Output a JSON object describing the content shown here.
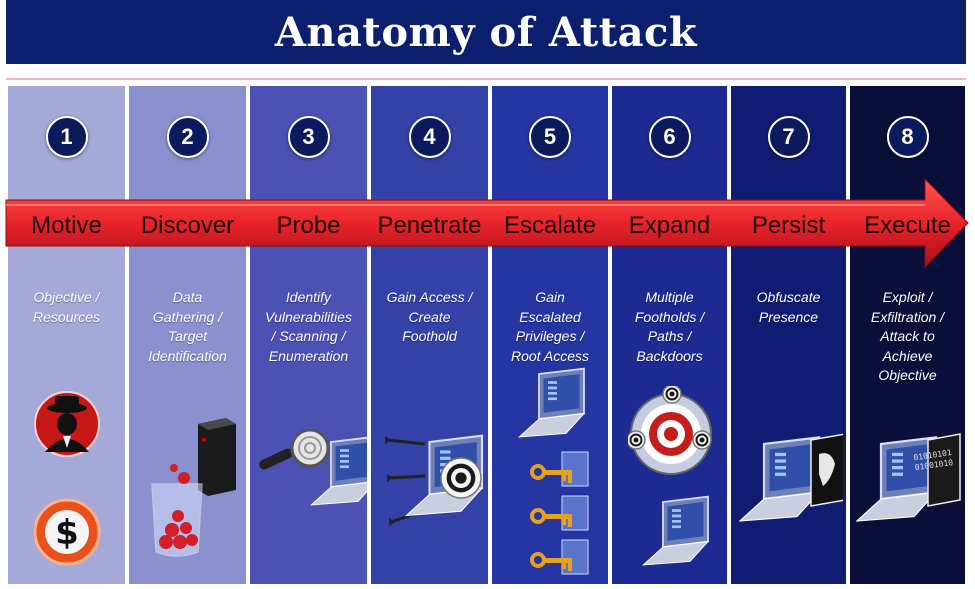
{
  "title": "Anatomy of Attack",
  "stages": [
    {
      "number": "1",
      "label": "Motive",
      "description": "Objective  /\nResources",
      "icons": [
        "spy-icon",
        "dollar-icon"
      ],
      "color": "#a5a9d8"
    },
    {
      "number": "2",
      "label": "Discover",
      "description": "Data\nGathering /\nTarget\nIdentification",
      "icons": [
        "server-icon",
        "data-beaker-icon"
      ],
      "color": "#8b90cf"
    },
    {
      "number": "3",
      "label": "Probe",
      "description": "Identify\nVulnerabilities\n/ Scanning /\nEnumeration",
      "icons": [
        "magnifier-icon",
        "laptop-icon"
      ],
      "color": "#4b52b3"
    },
    {
      "number": "4",
      "label": "Penetrate",
      "description": "Gain Access /\nCreate\nFoothold",
      "icons": [
        "darts-icon",
        "target-laptop-icon"
      ],
      "color": "#3441a6"
    },
    {
      "number": "5",
      "label": "Escalate",
      "description": "Gain\nEscalated\nPrivileges /\nRoot Access",
      "icons": [
        "laptop-icon",
        "keys-icon"
      ],
      "color": "#2536a2"
    },
    {
      "number": "6",
      "label": "Expand",
      "description": "Multiple\nFootholds  /\nPaths /\nBackdoors",
      "icons": [
        "multi-target-icon",
        "laptop-icon"
      ],
      "color": "#1c2a92"
    },
    {
      "number": "7",
      "label": "Persist",
      "description": "Obfuscate\nPresence",
      "icons": [
        "laptop-hidden-icon"
      ],
      "color": "#101c72"
    },
    {
      "number": "8",
      "label": "Execute",
      "description": "Exploit /\nExfiltration /\nAttack to\nAchieve\nObjective",
      "icons": [
        "laptop-exfil-icon"
      ],
      "color": "#0a0f3a"
    }
  ],
  "colors": {
    "title_bg": "#0b1f6e",
    "arrow": "#e8232a",
    "badge": "#0a1a5c"
  },
  "binary_text": [
    "01010101",
    "01001010"
  ]
}
